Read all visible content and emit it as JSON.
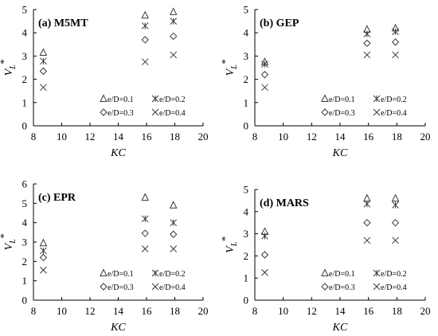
{
  "chart_data": [
    {
      "type": "scatter",
      "title": "(a) M5MT",
      "xlabel": "KC",
      "ylabel_main": "V",
      "ylabel_sub": "L",
      "ylabel_sup": "*",
      "xlim": [
        8,
        20
      ],
      "ylim": [
        0,
        5
      ],
      "xticks": [
        8,
        10,
        12,
        14,
        16,
        18,
        20
      ],
      "yticks": [
        0,
        1,
        2,
        3,
        4,
        5
      ],
      "x": [
        8.7,
        15.9,
        17.9
      ],
      "series": [
        {
          "name": "e/D=0.1",
          "marker": "triangle",
          "values": [
            3.15,
            4.75,
            4.9
          ]
        },
        {
          "name": "e/D=0.2",
          "marker": "asterisk",
          "values": [
            2.78,
            4.3,
            4.5
          ]
        },
        {
          "name": "e/D=0.3",
          "marker": "diamond",
          "values": [
            2.35,
            3.7,
            3.85
          ]
        },
        {
          "name": "e/D=0.4",
          "marker": "cross",
          "values": [
            1.65,
            2.75,
            3.05
          ]
        }
      ]
    },
    {
      "type": "scatter",
      "title": "(b) GEP",
      "xlabel": "KC",
      "ylabel_main": "V",
      "ylabel_sub": "L",
      "ylabel_sup": "*",
      "xlim": [
        8,
        20
      ],
      "ylim": [
        0,
        5
      ],
      "xticks": [
        8,
        10,
        12,
        14,
        16,
        18,
        20
      ],
      "yticks": [
        0,
        1,
        2,
        3,
        4,
        5
      ],
      "x": [
        8.7,
        15.9,
        17.9
      ],
      "series": [
        {
          "name": "e/D=0.1",
          "marker": "triangle",
          "values": [
            2.75,
            4.15,
            4.2
          ]
        },
        {
          "name": "e/D=0.2",
          "marker": "asterisk",
          "values": [
            2.65,
            3.95,
            4.05
          ]
        },
        {
          "name": "e/D=0.3",
          "marker": "diamond",
          "values": [
            2.2,
            3.55,
            3.6
          ]
        },
        {
          "name": "e/D=0.4",
          "marker": "cross",
          "values": [
            1.65,
            3.05,
            3.05
          ]
        }
      ]
    },
    {
      "type": "scatter",
      "title": "(c) EPR",
      "xlabel": "KC",
      "ylabel_main": "V",
      "ylabel_sub": "L",
      "ylabel_sup": "*",
      "xlim": [
        8,
        20
      ],
      "ylim": [
        0,
        6
      ],
      "xticks": [
        8,
        10,
        12,
        14,
        16,
        18,
        20
      ],
      "yticks": [
        0,
        1,
        2,
        3,
        4,
        5,
        6
      ],
      "x": [
        8.7,
        15.9,
        17.9
      ],
      "series": [
        {
          "name": "e/D=0.1",
          "marker": "triangle",
          "values": [
            2.95,
            5.3,
            4.9
          ]
        },
        {
          "name": "e/D=0.2",
          "marker": "asterisk",
          "values": [
            2.55,
            4.2,
            4.0
          ]
        },
        {
          "name": "e/D=0.3",
          "marker": "diamond",
          "values": [
            2.2,
            3.45,
            3.4
          ]
        },
        {
          "name": "e/D=0.4",
          "marker": "cross",
          "values": [
            1.55,
            2.65,
            2.65
          ]
        }
      ]
    },
    {
      "type": "scatter",
      "title": "(d) MARS",
      "xlabel": "KC",
      "ylabel_main": "V",
      "ylabel_sub": "L",
      "ylabel_sup": "*",
      "xlim": [
        8,
        20
      ],
      "ylim": [
        0,
        5
      ],
      "xticks": [
        8,
        10,
        12,
        14,
        16,
        18,
        20
      ],
      "yticks": [
        0,
        1,
        2,
        3,
        4,
        5
      ],
      "x": [
        8.7,
        15.9,
        17.9
      ],
      "series": [
        {
          "name": "e/D=0.1",
          "marker": "triangle",
          "values": [
            3.1,
            4.6,
            4.6
          ]
        },
        {
          "name": "e/D=0.2",
          "marker": "asterisk",
          "values": [
            2.9,
            4.35,
            4.3
          ]
        },
        {
          "name": "e/D=0.3",
          "marker": "diamond",
          "values": [
            2.05,
            3.5,
            3.5
          ]
        },
        {
          "name": "e/D=0.4",
          "marker": "cross",
          "values": [
            1.25,
            2.7,
            2.7
          ]
        }
      ]
    }
  ]
}
